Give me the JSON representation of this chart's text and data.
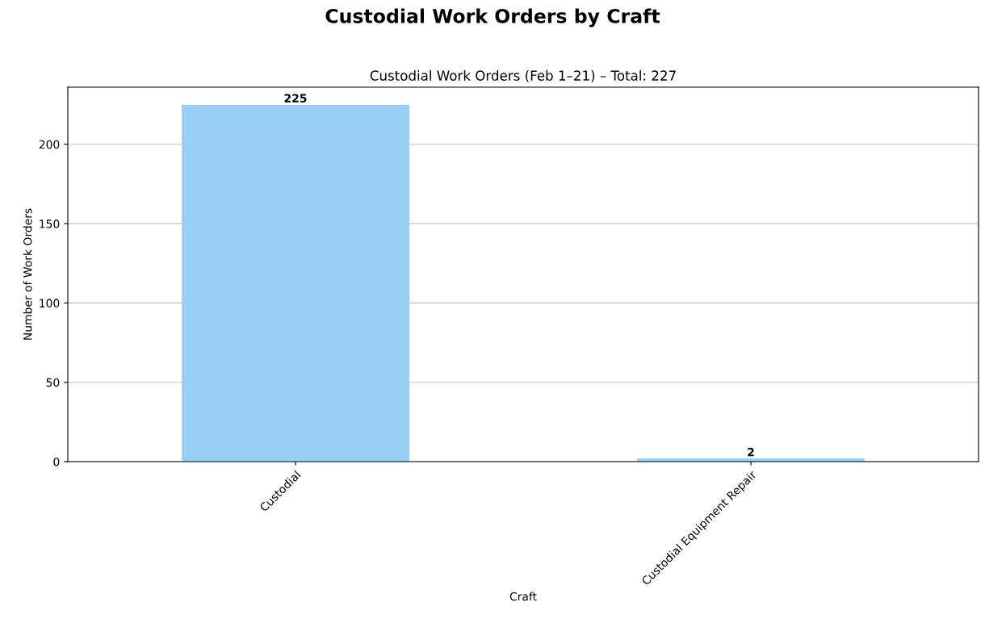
{
  "chart_data": {
    "type": "bar",
    "title": "Custodial Work Orders by Craft",
    "subtitle": "Custodial Work Orders (Feb 1–21) – Total: 227",
    "xlabel": "Craft",
    "ylabel": "Number of Work Orders",
    "categories": [
      "Custodial",
      "Custodial Equipment Repair"
    ],
    "values": [
      225,
      2
    ],
    "color": "#9acff5",
    "ylim": [
      0,
      236
    ],
    "yticks": [
      0,
      50,
      100,
      150,
      200
    ],
    "grid": "y",
    "data_labels": true
  }
}
